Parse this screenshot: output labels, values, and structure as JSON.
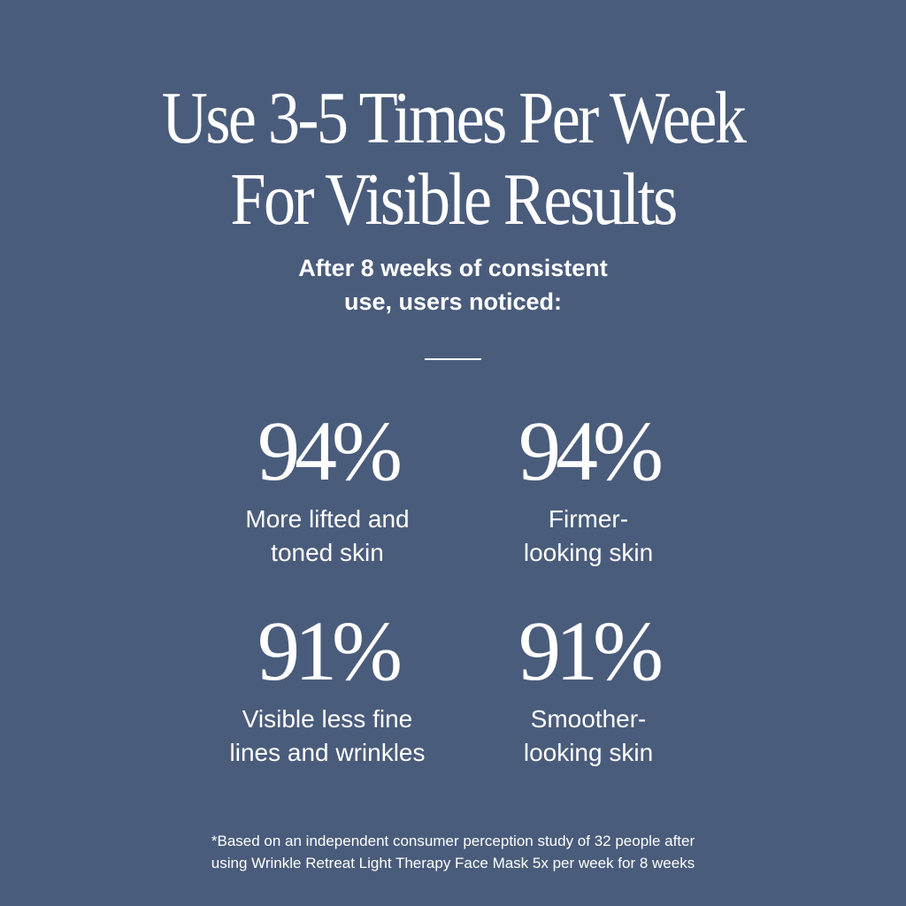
{
  "title": {
    "line1": "Use 3-5 Times Per Week",
    "line2": "For Visible Results"
  },
  "subtitle": {
    "line1": "After 8 weeks of consistent",
    "line2": "use, users noticed:"
  },
  "stats": [
    {
      "value": "94%",
      "label1": "More lifted and",
      "label2": "toned skin"
    },
    {
      "value": "94%",
      "label1": "Firmer-",
      "label2": "looking skin"
    },
    {
      "value": "91%",
      "label1": "Visible less fine",
      "label2": "lines and wrinkles"
    },
    {
      "value": "91%",
      "label1": "Smoother-",
      "label2": "looking skin"
    }
  ],
  "footnote": {
    "line1": "*Based on an independent consumer perception study of 32 people after",
    "line2": "using Wrinkle Retreat Light Therapy Face Mask 5x per week for 8 weeks"
  },
  "colors": {
    "background": "#4a5c7b",
    "text": "#ffffff"
  }
}
